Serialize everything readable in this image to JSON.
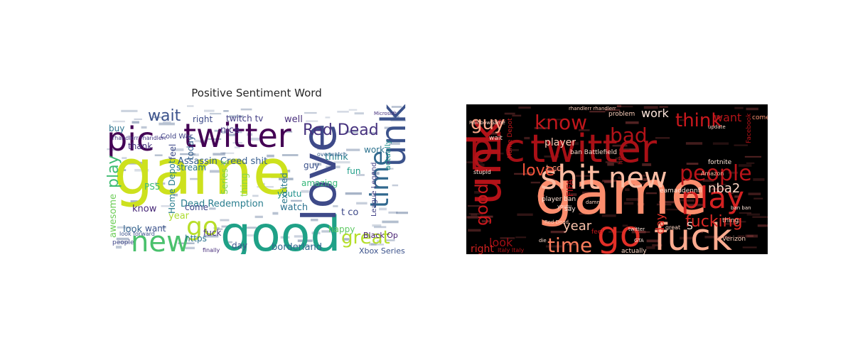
{
  "positive": {
    "title": "Positive Sentiment Word",
    "background": "#ffffff",
    "words": [
      {
        "text": "game",
        "color": "#cde11d"
      },
      {
        "text": "good",
        "color": "#1fa187"
      },
      {
        "text": "love",
        "color": "#3e4a89"
      },
      {
        "text": "pic",
        "color": "#440154"
      },
      {
        "text": "twitter",
        "color": "#440154"
      },
      {
        "text": "unk",
        "color": "#3b528b"
      },
      {
        "text": "time",
        "color": "#31688e"
      },
      {
        "text": "new",
        "color": "#4ac16d"
      },
      {
        "text": "go",
        "color": "#b8de29"
      },
      {
        "text": "great",
        "color": "#b5de2b"
      },
      {
        "text": "Red Dead",
        "color": "#46327e"
      },
      {
        "text": "wait",
        "color": "#3b528b"
      },
      {
        "text": "play",
        "color": "#3fbc73"
      },
      {
        "text": "Assassin Creed shit",
        "color": "#365d8d"
      },
      {
        "text": "think",
        "color": "#26828e"
      },
      {
        "text": "Dead Redemption",
        "color": "#287d8e"
      },
      {
        "text": "well",
        "color": "#472d7b"
      },
      {
        "text": "twitch tv",
        "color": "#433e85"
      },
      {
        "text": "right",
        "color": "#3e4c8a"
      },
      {
        "text": "nice",
        "color": "#443983"
      },
      {
        "text": "buy",
        "color": "#2c728e"
      },
      {
        "text": "thank",
        "color": "#46327e"
      },
      {
        "text": "feel",
        "color": "#3e4a89"
      },
      {
        "text": "today",
        "color": "#355f8d"
      },
      {
        "text": "Cold War",
        "color": "#414487"
      },
      {
        "text": "stream",
        "color": "#2a788e"
      },
      {
        "text": "PS5",
        "color": "#3dbc74"
      },
      {
        "text": "Home Depot",
        "color": "#287d8e"
      },
      {
        "text": "Series X",
        "color": "#7ad151"
      },
      {
        "text": "thing",
        "color": "#8fd744"
      },
      {
        "text": "youtu",
        "color": "#21918c"
      },
      {
        "text": "excited",
        "color": "#2a788e"
      },
      {
        "text": "amazing",
        "color": "#35b779"
      },
      {
        "text": "guy",
        "color": "#3b528b"
      },
      {
        "text": "fun",
        "color": "#1f9e89"
      },
      {
        "text": "work",
        "color": "#2c728e"
      },
      {
        "text": "actually",
        "color": "#21918c"
      },
      {
        "text": "League Legend",
        "color": "#424086"
      },
      {
        "text": "watch",
        "color": "#2c728e"
      },
      {
        "text": "come",
        "color": "#404688"
      },
      {
        "text": "know",
        "color": "#482878"
      },
      {
        "text": "year",
        "color": "#addc30"
      },
      {
        "text": "want",
        "color": "#3b528b"
      },
      {
        "text": "look",
        "color": "#33638d"
      },
      {
        "text": "fuck",
        "color": "#46327e"
      },
      {
        "text": "https",
        "color": "#2c728e"
      },
      {
        "text": "day",
        "color": "#3b528b"
      },
      {
        "text": "borderland",
        "color": "#31688e"
      },
      {
        "text": "t co",
        "color": "#3e4989"
      },
      {
        "text": "happy",
        "color": "#5ec962"
      },
      {
        "text": "Black Op",
        "color": "#482173"
      },
      {
        "text": "Xbox Series",
        "color": "#3b528b"
      },
      {
        "text": "awesome",
        "color": "#6ece58"
      },
      {
        "text": "people",
        "color": "#404688"
      },
      {
        "text": "finally",
        "color": "#472d7b"
      },
      {
        "text": "rhandlerr rhandlerr",
        "color": "#443983"
      },
      {
        "text": "look forward",
        "color": "#3b528b"
      },
      {
        "text": "overwatch",
        "color": "#355f8d"
      },
      {
        "text": "Microsoft",
        "color": "#46327e"
      }
    ]
  },
  "negative": {
    "background": "#000000",
    "words": [
      {
        "text": "game",
        "color": "#fc8d6d"
      },
      {
        "text": "pic",
        "color": "#a50f15"
      },
      {
        "text": "twitter",
        "color": "#a91016"
      },
      {
        "text": "unk",
        "color": "#b31218"
      },
      {
        "text": "fuck",
        "color": "#fcab8f"
      },
      {
        "text": "go",
        "color": "#e32f27"
      },
      {
        "text": "shit",
        "color": "#fcbba1"
      },
      {
        "text": "new",
        "color": "#fcbea5"
      },
      {
        "text": "play",
        "color": "#d42121"
      },
      {
        "text": "people",
        "color": "#b91419"
      },
      {
        "text": "time",
        "color": "#fb7c5c"
      },
      {
        "text": "know",
        "color": "#c0161b"
      },
      {
        "text": "think",
        "color": "#ca181d"
      },
      {
        "text": "bad",
        "color": "#b11218"
      },
      {
        "text": "guy",
        "color": "#fca689"
      },
      {
        "text": "love",
        "color": "#f6553c"
      },
      {
        "text": "good",
        "color": "#cb181d"
      },
      {
        "text": "look",
        "color": "#a10e15"
      },
      {
        "text": "fucking",
        "color": "#db2824"
      },
      {
        "text": "nba2",
        "color": "#fdd5c4"
      },
      {
        "text": "work",
        "color": "#fee7dc"
      },
      {
        "text": "want",
        "color": "#b51419"
      },
      {
        "text": "player",
        "color": "#fdcab5"
      },
      {
        "text": "year",
        "color": "#fcc3ab"
      },
      {
        "text": "day",
        "color": "#e32f27"
      },
      {
        "text": "right",
        "color": "#d52221"
      },
      {
        "text": "S",
        "color": "#fee3d7"
      },
      {
        "text": "great",
        "color": "#fdd4c2"
      },
      {
        "text": "t co",
        "color": "#fc9777"
      },
      {
        "text": "FIFA",
        "color": "#bb141a"
      },
      {
        "text": "player ban",
        "color": "#fee3d6"
      },
      {
        "text": "eamaddennfl",
        "color": "#fee5d9"
      },
      {
        "text": "Facebook",
        "color": "#b31218"
      },
      {
        "text": "come",
        "color": "#fc9474"
      },
      {
        "text": "problem",
        "color": "#fdd0bc"
      },
      {
        "text": "Home Depot",
        "color": "#c5171c"
      },
      {
        "text": "https",
        "color": "#a50f15"
      },
      {
        "text": "actually",
        "color": "#fdd7c6"
      },
      {
        "text": "Italy Italy",
        "color": "#b11218"
      },
      {
        "text": "ban Battlefield",
        "color": "#fedbcc"
      },
      {
        "text": "say",
        "color": "#fee9df"
      },
      {
        "text": "feel",
        "color": "#c3161b"
      },
      {
        "text": "thing",
        "color": "#fdc6b0"
      },
      {
        "text": "wait",
        "color": "#fee0d2"
      },
      {
        "text": "Verizon",
        "color": "#fdd0bc"
      },
      {
        "text": "fortnite",
        "color": "#fee5d8"
      },
      {
        "text": "Amazon",
        "color": "#fcbea5"
      },
      {
        "text": "rhandlerr rhandlerr",
        "color": "#fdcdb9"
      },
      {
        "text": "stupid",
        "color": "#fee4d8"
      },
      {
        "text": "damn",
        "color": "#fdd3c1"
      },
      {
        "text": "GTA",
        "color": "#fee7dc"
      },
      {
        "text": "ban ban",
        "color": "#fee6da"
      },
      {
        "text": "Red Dead",
        "color": "#fdc9b3"
      },
      {
        "text": "RainbowGame",
        "color": "#fdd4c2"
      },
      {
        "text": "youtu",
        "color": "#fee3d6"
      },
      {
        "text": "twitter",
        "color": "#fee8dd"
      },
      {
        "text": "die",
        "color": "#fde0d2"
      },
      {
        "text": "update",
        "color": "#fdd9c9"
      }
    ]
  }
}
